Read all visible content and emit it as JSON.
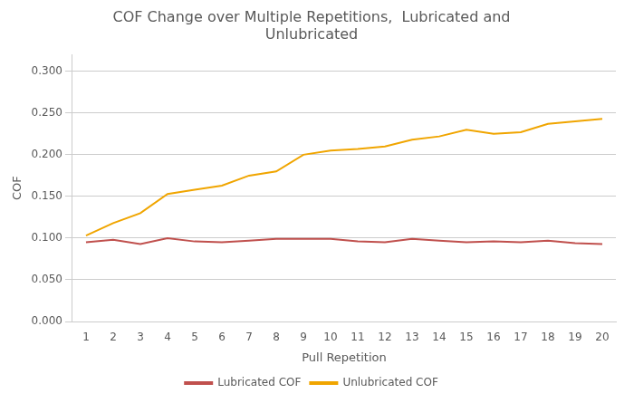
{
  "chart_data": {
    "type": "line",
    "title": "COF Change over Multiple Repetitions,  Lubricated and\nUnlubricated",
    "xlabel": "Pull Repetition",
    "ylabel": "COF",
    "x": [
      1,
      2,
      3,
      4,
      5,
      6,
      7,
      8,
      9,
      10,
      11,
      12,
      13,
      14,
      15,
      16,
      17,
      18,
      19,
      20
    ],
    "series": [
      {
        "name": "Lubricated COF",
        "color": "#c0504d",
        "values": [
          0.095,
          0.098,
          0.093,
          0.1,
          0.096,
          0.095,
          0.097,
          0.099,
          0.099,
          0.099,
          0.096,
          0.095,
          0.099,
          0.097,
          0.095,
          0.096,
          0.095,
          0.097,
          0.094,
          0.093
        ]
      },
      {
        "name": "Unlubricated COF",
        "color": "#f0a500",
        "values": [
          0.103,
          0.118,
          0.13,
          0.153,
          0.158,
          0.163,
          0.175,
          0.18,
          0.2,
          0.205,
          0.207,
          0.21,
          0.218,
          0.222,
          0.23,
          0.225,
          0.227,
          0.237,
          0.24,
          0.243
        ]
      }
    ],
    "xlim": [
      0.5,
      20.5
    ],
    "xticks": [
      1,
      2,
      3,
      4,
      5,
      6,
      7,
      8,
      9,
      10,
      11,
      12,
      13,
      14,
      15,
      16,
      17,
      18,
      19,
      20
    ],
    "ylim": [
      0.0,
      0.32
    ],
    "yticks": [
      {
        "value": 0.0,
        "label": "0.000"
      },
      {
        "value": 0.05,
        "label": "0.050"
      },
      {
        "value": 0.1,
        "label": "0.100"
      },
      {
        "value": 0.15,
        "label": "0.150"
      },
      {
        "value": 0.2,
        "label": "0.200"
      },
      {
        "value": 0.25,
        "label": "0.250"
      },
      {
        "value": 0.3,
        "label": "0.300"
      }
    ],
    "grid": "y",
    "legend": "bottom"
  }
}
